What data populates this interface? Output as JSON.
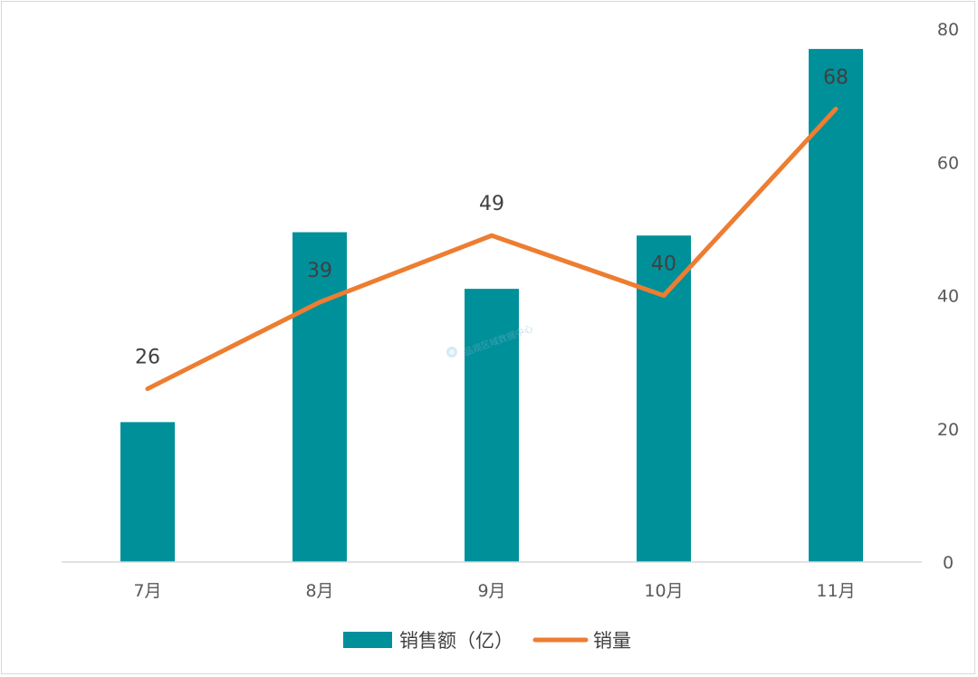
{
  "chart_data": {
    "type": "bar+line",
    "categories": [
      "7月",
      "8月",
      "9月",
      "10月",
      "11月"
    ],
    "series": [
      {
        "name": "销售额（亿）",
        "type": "bar",
        "values": [
          21,
          49.5,
          41,
          49,
          77
        ],
        "color": "#00909A"
      },
      {
        "name": "销量",
        "type": "line",
        "values": [
          26,
          39,
          49,
          40,
          68
        ],
        "data_labels": [
          "26",
          "39",
          "49",
          "40",
          "68"
        ],
        "color": "#ED7D31"
      }
    ],
    "y_axis": {
      "position": "right",
      "ylim": [
        0,
        80
      ],
      "ticks": [
        0,
        20,
        40,
        60,
        80
      ]
    },
    "grid": false,
    "legend": "bottom",
    "title": "",
    "xlabel": "",
    "ylabel": ""
  },
  "watermark": "品观区域数据中心"
}
